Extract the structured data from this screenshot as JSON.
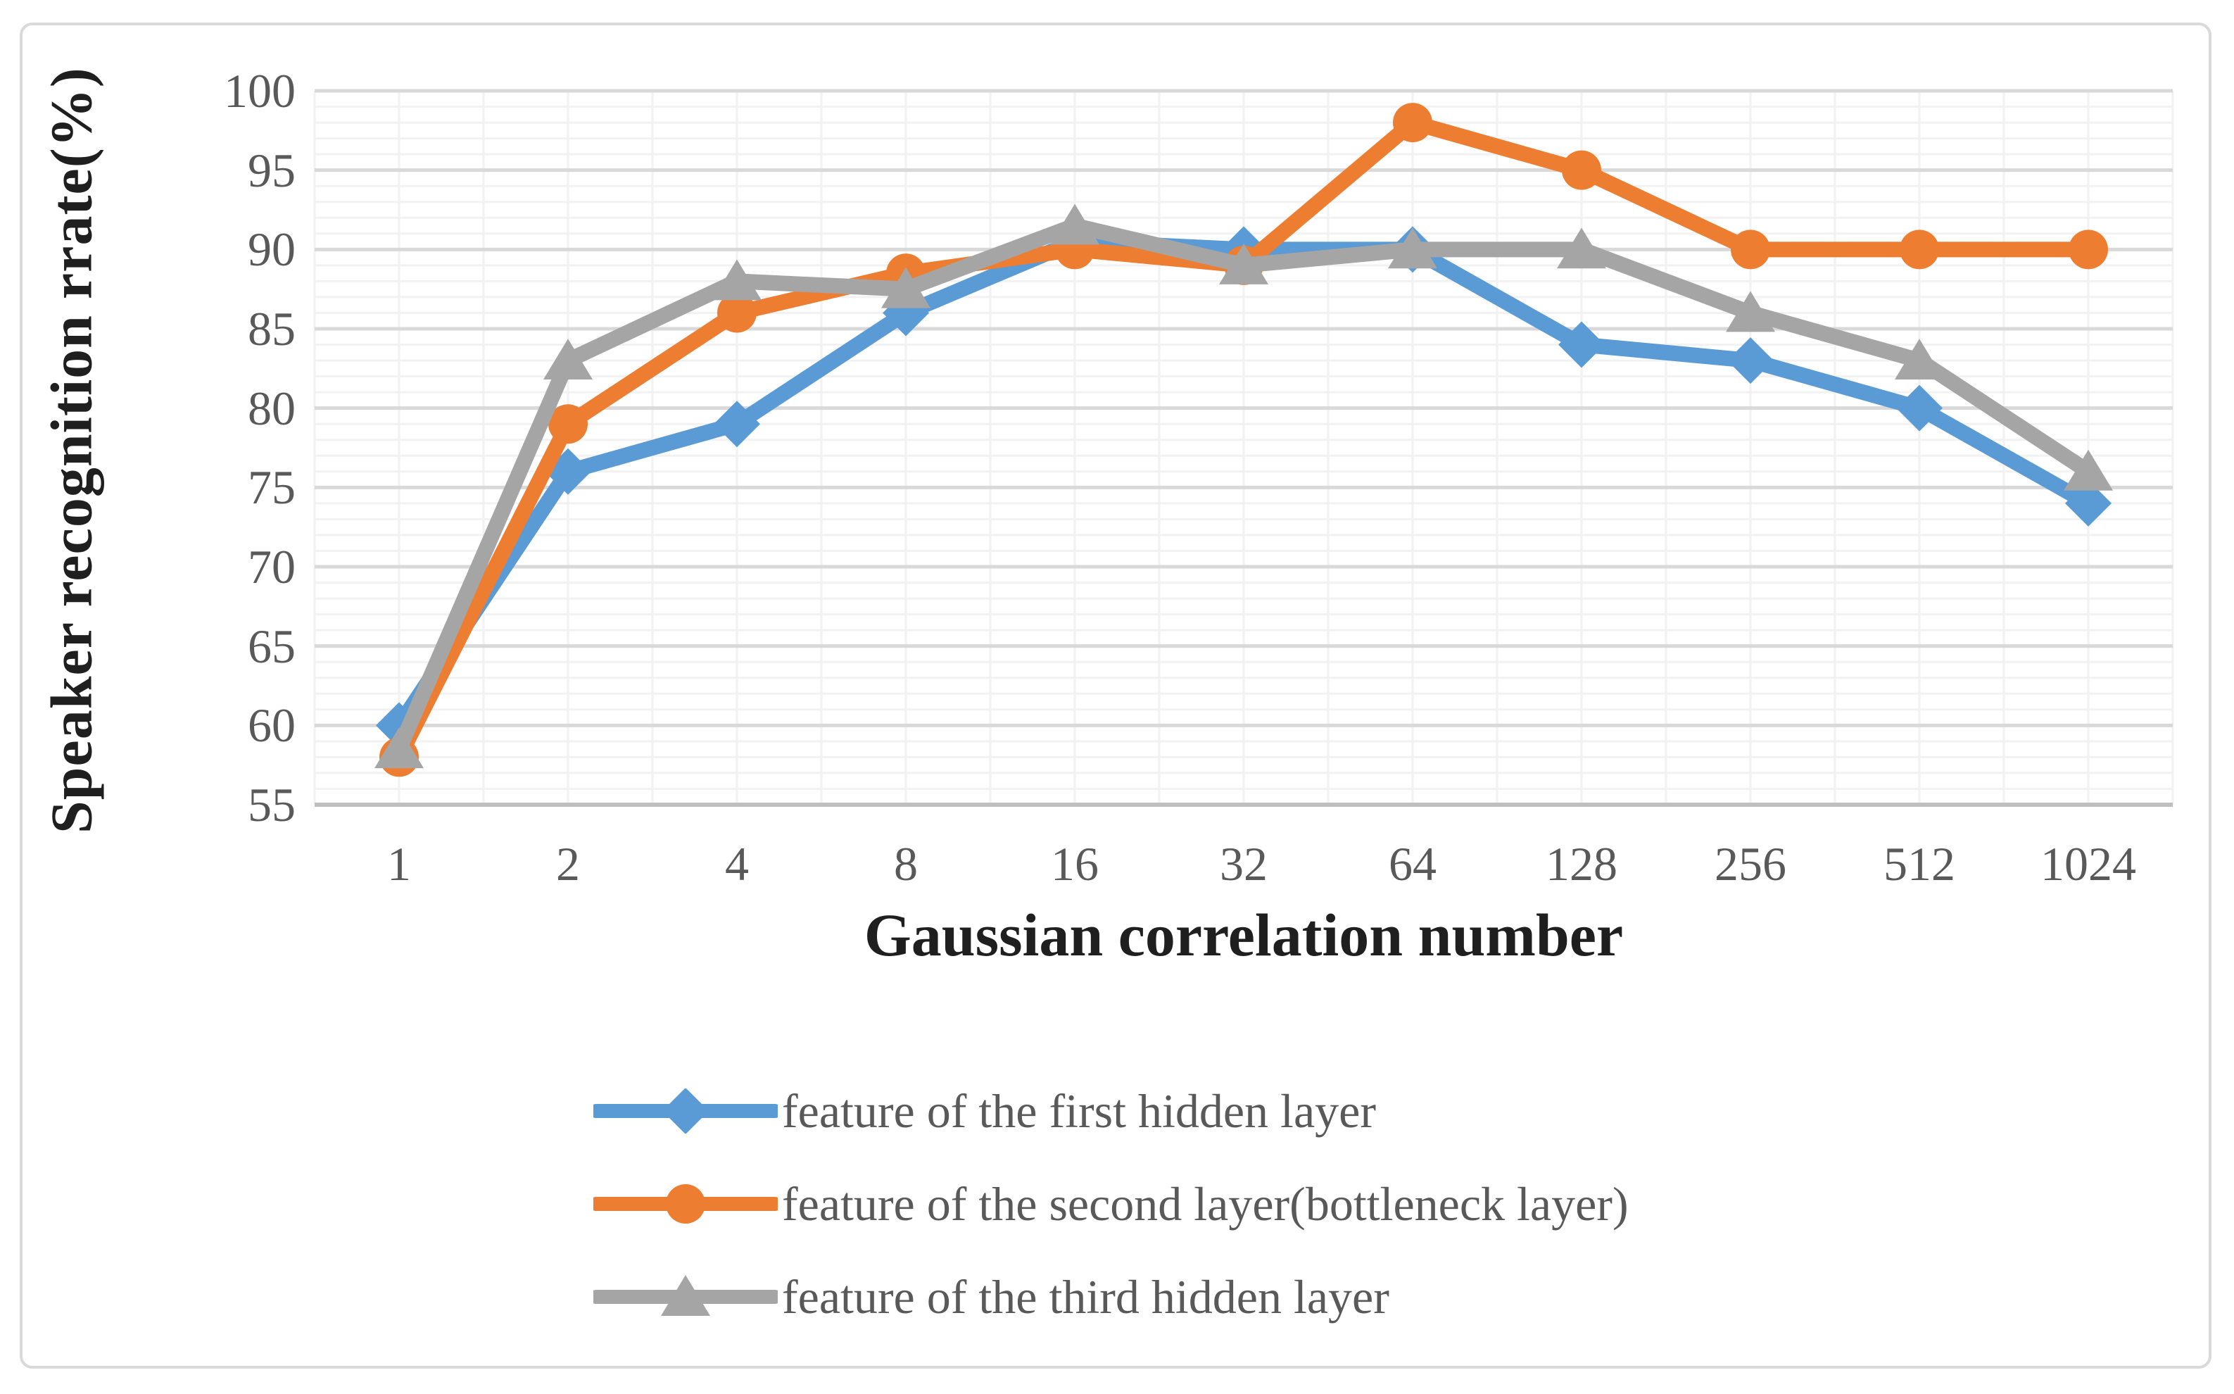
{
  "chart_data": {
    "type": "line",
    "title": "",
    "xlabel": "Gaussian correlation number",
    "ylabel": "Speaker recognition rrate(%)",
    "categories": [
      "1",
      "2",
      "4",
      "8",
      "16",
      "32",
      "64",
      "128",
      "256",
      "512",
      "1024"
    ],
    "y_axis": {
      "ticks": [
        "100",
        "95",
        "90",
        "85",
        "80",
        "75",
        "70",
        "65",
        "60",
        "55"
      ],
      "min": 55,
      "max": 100,
      "major_step": 5,
      "minor_step": 1
    },
    "grid": {
      "horizontal_major": true,
      "horizontal_minor": true,
      "vertical": true
    },
    "legend_position": "bottom",
    "series": [
      {
        "name": "feature of the first hidden layer",
        "color": "#5B9BD5",
        "marker": "diamond",
        "values": [
          60,
          76,
          79,
          86,
          90.5,
          90,
          90,
          84,
          83,
          80,
          74
        ]
      },
      {
        "name": "feature of the second layer(bottleneck layer)",
        "color": "#ED7D31",
        "marker": "circle",
        "values": [
          58,
          79,
          86,
          88.5,
          90,
          89,
          98,
          95,
          90,
          90,
          90
        ]
      },
      {
        "name": "feature of the third hidden layer",
        "color": "#A5A5A5",
        "marker": "triangle",
        "values": [
          58.5,
          83,
          88,
          87.5,
          91.5,
          89,
          90,
          90,
          86,
          83,
          76
        ]
      }
    ]
  }
}
